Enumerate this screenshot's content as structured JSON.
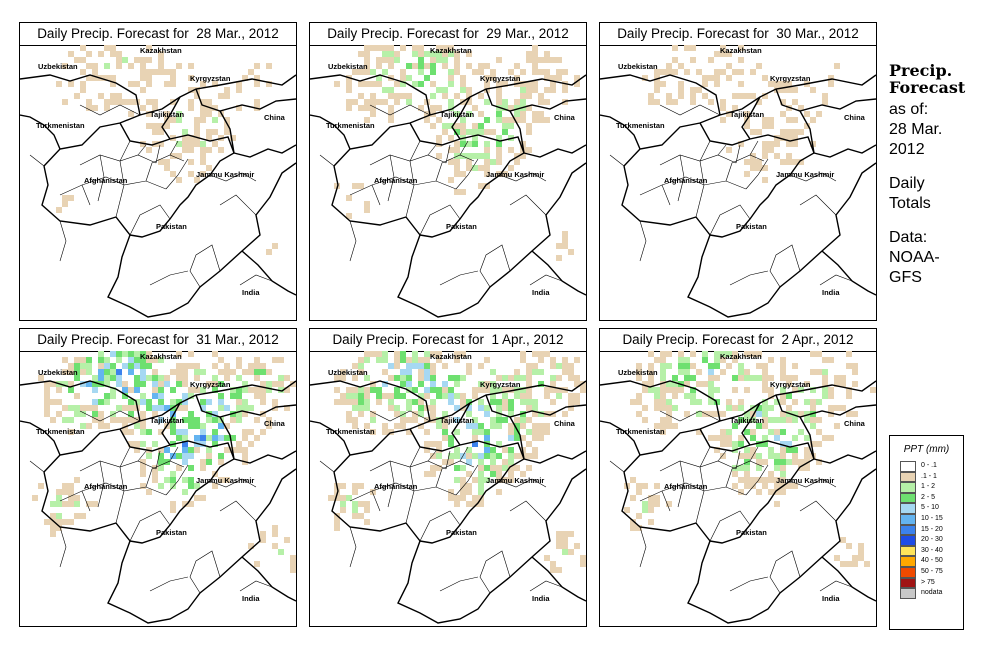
{
  "panels": [
    {
      "title": "Daily Precip. Forecast for  28 Mar., 2012",
      "intensity": 0.35,
      "seed": 11
    },
    {
      "title": "Daily Precip. Forecast for  29 Mar., 2012",
      "intensity": 0.55,
      "seed": 23
    },
    {
      "title": "Daily Precip. Forecast for  30 Mar., 2012",
      "intensity": 0.3,
      "seed": 37
    },
    {
      "title": "Daily Precip. Forecast for  31 Mar., 2012",
      "intensity": 0.9,
      "seed": 41
    },
    {
      "title": "Daily Precip. Forecast for  1 Apr., 2012",
      "intensity": 0.8,
      "seed": 53
    },
    {
      "title": "Daily Precip. Forecast for  2 Apr., 2012",
      "intensity": 0.65,
      "seed": 67
    }
  ],
  "country_labels": [
    "Kazakhstan",
    "Uzbekistan",
    "Kyrgyzstan",
    "Turkmenistan",
    "Tajikistan",
    "China",
    "Afghanistan",
    "Jammu Kashmir",
    "Pakistan",
    "India"
  ],
  "side": {
    "title_line1": "Precip.",
    "title_line2": "Forecast",
    "asof_line1": "as of:",
    "asof_line2": "28 Mar.",
    "asof_line3": "2012",
    "totals_line1": "Daily",
    "totals_line2": "Totals",
    "data_line1": "Data:",
    "data_line2": "NOAA-",
    "data_line3": "GFS"
  },
  "legend": {
    "title": "PPT (mm)",
    "entries": [
      {
        "label": "0 - .1",
        "color": "#ffffff"
      },
      {
        "label": ".1 - 1",
        "color": "#e8d3b4"
      },
      {
        "label": "1 - 2",
        "color": "#b6f0a8"
      },
      {
        "label": "2 - 5",
        "color": "#6ee070"
      },
      {
        "label": "5 - 10",
        "color": "#a6d8f2"
      },
      {
        "label": "10 - 15",
        "color": "#64b4f0"
      },
      {
        "label": "15 - 20",
        "color": "#3c82ec"
      },
      {
        "label": "20 - 30",
        "color": "#1e4ce6"
      },
      {
        "label": "30 - 40",
        "color": "#ffe45a"
      },
      {
        "label": "40 - 50",
        "color": "#ffa800"
      },
      {
        "label": "50 - 75",
        "color": "#f04a00"
      },
      {
        "label": "> 75",
        "color": "#a01414"
      },
      {
        "label": "nodata",
        "color": "#c8c8c8"
      }
    ]
  }
}
